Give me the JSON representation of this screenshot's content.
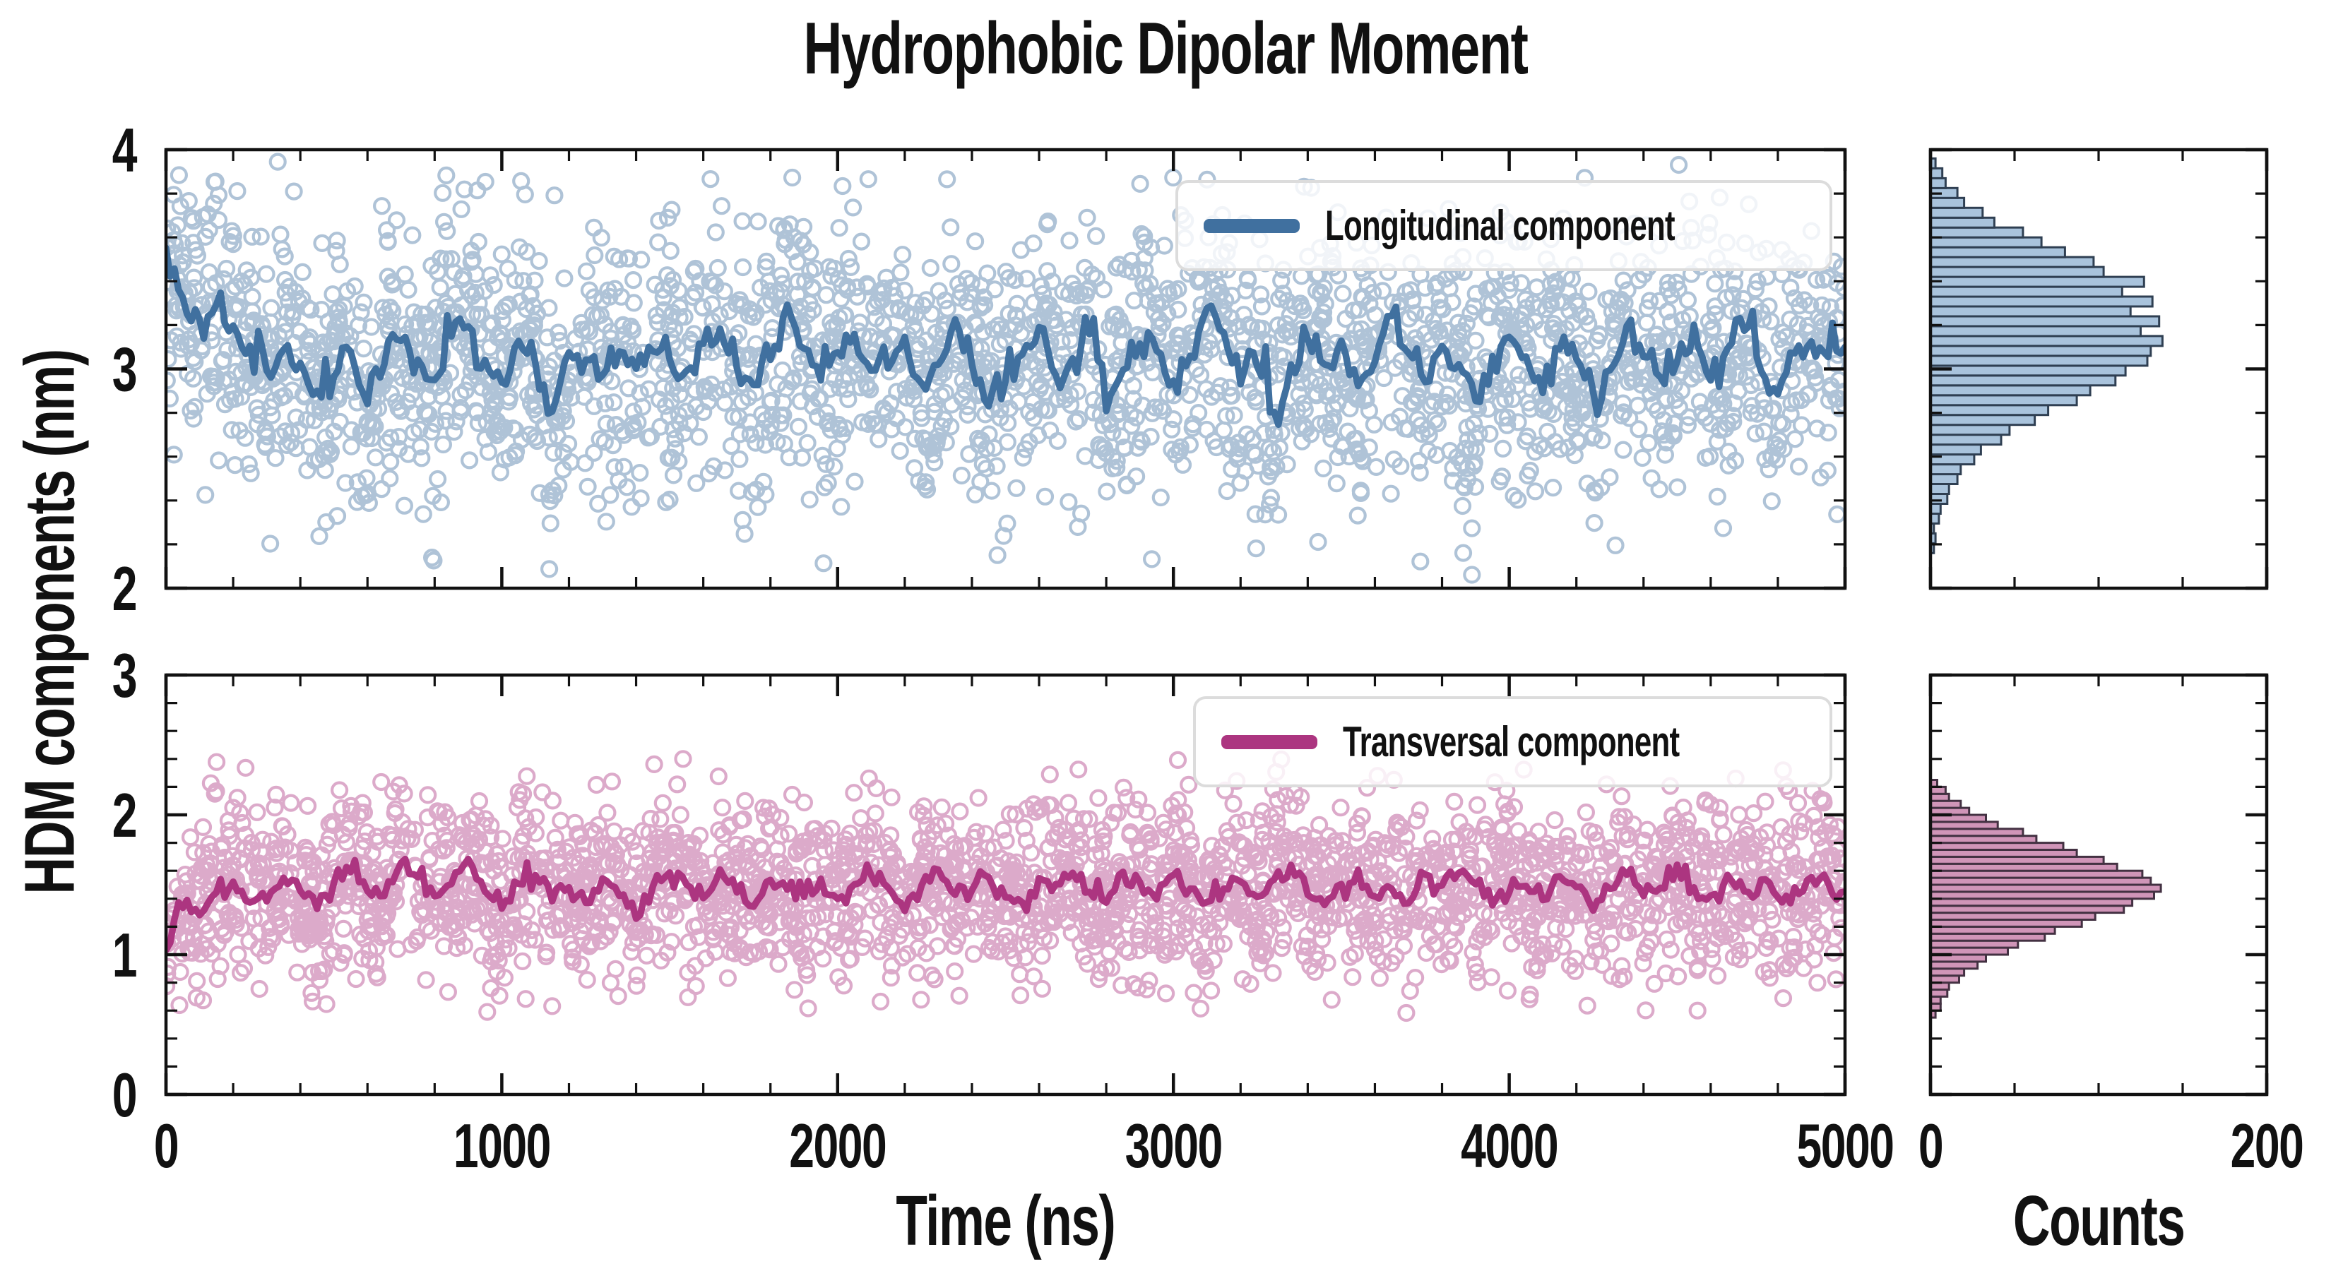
{
  "title": "Hydrophobic Dipolar Moment",
  "y_axis_label": "HDM components (nm)",
  "x_axis_label_main": "Time (ns)",
  "x_axis_label_hist": "Counts",
  "colors": {
    "axis": "#111111",
    "legend_border": "#dcdcdc",
    "longitudinal_line": "#40709f",
    "longitudinal_scatter": "#40709f",
    "longitudinal_hist_fill": "#a9c3dc",
    "longitudinal_hist_edge": "#2f3f52",
    "transversal_line": "#ac3580",
    "transversal_scatter": "#ac3580",
    "transversal_hist_fill": "#d095b8",
    "transversal_hist_edge": "#433142"
  },
  "chart_data": [
    {
      "type": "scatter",
      "name": "Longitudinal component",
      "xlabel": "Time (ns)",
      "ylabel": "HDM components (nm)",
      "x_range": [
        0,
        5000
      ],
      "y_range": [
        2,
        4
      ],
      "x_major_ticks": [
        0,
        1000,
        2000,
        3000,
        4000,
        5000
      ],
      "x_tick_labels": [
        "0",
        "1000",
        "2000",
        "3000",
        "4000",
        "5000"
      ],
      "x_minor_step": 200,
      "y_major_ticks": [
        2,
        3,
        4
      ],
      "y_tick_labels": [
        "2",
        "3",
        "4"
      ],
      "y_minor_step": 0.2,
      "show_x_tick_labels": false,
      "legend_position": "upper right",
      "scatter": {
        "n": 2600,
        "noise_std": 0.3,
        "seed": 1337,
        "clip": [
          2.04,
          3.95
        ],
        "marker": "open-circle",
        "alpha": 0.42
      },
      "line": {
        "x_step": 50,
        "jitter": 0.05,
        "seed": 77,
        "y": [
          3.52,
          3.3,
          3.18,
          3.28,
          3.2,
          3.08,
          2.98,
          3.12,
          3.05,
          2.92,
          3.0,
          3.1,
          2.82,
          3.05,
          3.12,
          3.0,
          2.93,
          3.18,
          3.22,
          3.05,
          2.95,
          3.15,
          3.02,
          2.8,
          3.08,
          3.0,
          2.95,
          3.06,
          2.98,
          3.1,
          3.02,
          2.96,
          3.14,
          3.18,
          3.0,
          2.92,
          3.05,
          3.28,
          3.1,
          2.95,
          3.08,
          3.15,
          2.98,
          3.02,
          3.12,
          2.9,
          2.98,
          3.2,
          3.05,
          2.85,
          2.95,
          3.1,
          3.18,
          2.96,
          3.05,
          3.22,
          2.88,
          3.0,
          3.15,
          3.08,
          2.92,
          3.05,
          3.25,
          3.12,
          2.95,
          3.05,
          2.8,
          2.98,
          3.15,
          3.02,
          3.1,
          2.9,
          3.05,
          3.22,
          3.08,
          2.95,
          3.12,
          3.0,
          2.85,
          3.05,
          3.18,
          3.02,
          2.92,
          3.1,
          3.05,
          2.88,
          3.0,
          3.2,
          3.1,
          2.98,
          3.05,
          3.15,
          2.95,
          3.08,
          3.18,
          3.0,
          2.9,
          3.08,
          3.12,
          3.05,
          3.1
        ]
      },
      "histogram": {
        "orientation": "horizontal",
        "bin_start": 2.16,
        "bin_width": 0.045,
        "counts": [
          2,
          3,
          2,
          5,
          6,
          10,
          11,
          16,
          18,
          26,
          30,
          42,
          47,
          62,
          70,
          87,
          95,
          110,
          116,
          129,
          131,
          138,
          125,
          136,
          119,
          132,
          114,
          127,
          103,
          97,
          80,
          66,
          55,
          38,
          31,
          20,
          16,
          9,
          7,
          3
        ],
        "count_range": [
          0,
          200
        ],
        "count_tick_labels": [
          "0",
          "200"
        ],
        "count_minor_ticks": [
          50,
          100,
          150
        ]
      }
    },
    {
      "type": "scatter",
      "name": "Transversal component",
      "xlabel": "Time (ns)",
      "ylabel": "HDM components (nm)",
      "x_range": [
        0,
        5000
      ],
      "y_range": [
        0,
        3
      ],
      "x_major_ticks": [
        0,
        1000,
        2000,
        3000,
        4000,
        5000
      ],
      "x_tick_labels": [
        "0",
        "1000",
        "2000",
        "3000",
        "4000",
        "5000"
      ],
      "x_minor_step": 200,
      "y_major_ticks": [
        0,
        1,
        2,
        3
      ],
      "y_tick_labels": [
        "0",
        "1",
        "2",
        "3"
      ],
      "y_minor_step": 0.2,
      "show_x_tick_labels": true,
      "legend_position": "upper right",
      "scatter": {
        "n": 2600,
        "noise_std": 0.32,
        "seed": 4242,
        "clip": [
          0.58,
          2.42
        ],
        "marker": "open-circle",
        "alpha": 0.42
      },
      "line": {
        "x_step": 50,
        "jitter": 0.045,
        "seed": 99,
        "y": [
          1.02,
          1.35,
          1.28,
          1.45,
          1.52,
          1.38,
          1.42,
          1.55,
          1.48,
          1.35,
          1.5,
          1.62,
          1.45,
          1.38,
          1.7,
          1.55,
          1.42,
          1.5,
          1.65,
          1.45,
          1.35,
          1.52,
          1.58,
          1.42,
          1.48,
          1.38,
          1.55,
          1.45,
          1.3,
          1.5,
          1.62,
          1.48,
          1.4,
          1.58,
          1.45,
          1.35,
          1.52,
          1.46,
          1.42,
          1.55,
          1.38,
          1.48,
          1.6,
          1.45,
          1.32,
          1.5,
          1.58,
          1.42,
          1.48,
          1.55,
          1.4,
          1.35,
          1.52,
          1.48,
          1.62,
          1.45,
          1.38,
          1.55,
          1.5,
          1.42,
          1.58,
          1.45,
          1.35,
          1.48,
          1.55,
          1.4,
          1.52,
          1.62,
          1.45,
          1.38,
          1.5,
          1.58,
          1.42,
          1.48,
          1.35,
          1.55,
          1.45,
          1.6,
          1.5,
          1.38,
          1.45,
          1.52,
          1.4,
          1.58,
          1.48,
          1.35,
          1.5,
          1.55,
          1.42,
          1.48,
          1.62,
          1.45,
          1.38,
          1.52,
          1.48,
          1.55,
          1.4,
          1.45,
          1.58,
          1.5,
          1.45
        ]
      },
      "histogram": {
        "orientation": "horizontal",
        "bin_start": 0.55,
        "bin_width": 0.05,
        "counts": [
          3,
          6,
          6,
          10,
          11,
          17,
          20,
          28,
          33,
          46,
          52,
          68,
          74,
          90,
          98,
          115,
          120,
          133,
          137,
          131,
          126,
          111,
          103,
          87,
          79,
          63,
          55,
          40,
          33,
          23,
          18,
          11,
          9,
          4
        ],
        "count_range": [
          0,
          200
        ],
        "count_tick_labels": [
          "0",
          "200"
        ],
        "count_minor_ticks": [
          50,
          100,
          150
        ]
      }
    }
  ]
}
